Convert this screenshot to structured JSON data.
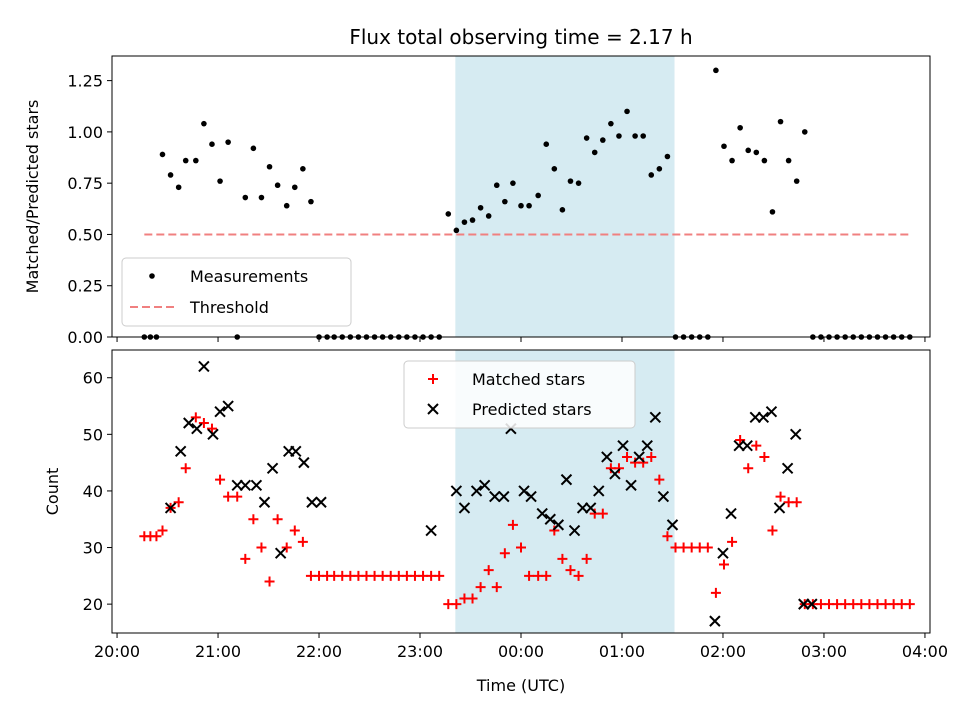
{
  "colors": {
    "band": "#add8e6",
    "measurement": "#000000",
    "threshold": "#f08080",
    "matched": "#ff0000",
    "predicted": "#000000"
  },
  "chart_data": [
    {
      "type": "scatter",
      "title": "Flux total observing time = 2.17 h",
      "xlabel": "",
      "ylabel": "Matched/Predicted stars",
      "xlim": [
        -0.05,
        8.05
      ],
      "ylim": [
        0.0,
        1.37
      ],
      "xticks": [
        0,
        1,
        2,
        3,
        4,
        5,
        6,
        7,
        8
      ],
      "yticks": [
        0.0,
        0.25,
        0.5,
        0.75,
        1.0,
        1.25
      ],
      "ytick_labels": [
        "0.00",
        "0.25",
        "0.50",
        "0.75",
        "1.00",
        "1.25"
      ],
      "grid": false,
      "legend_position": "lower-left",
      "shaded_band": [
        3.35,
        5.52
      ],
      "series": [
        {
          "name": "Measurements",
          "kind": "scatter",
          "x": [
            0.27,
            0.33,
            0.39,
            0.45,
            0.53,
            0.61,
            0.68,
            0.78,
            0.86,
            0.94,
            1.02,
            1.1,
            1.19,
            1.27,
            1.35,
            1.43,
            1.51,
            1.59,
            1.68,
            1.76,
            1.84,
            1.92,
            2.0,
            2.08,
            2.15,
            2.23,
            2.31,
            2.39,
            2.47,
            2.55,
            2.63,
            2.71,
            2.79,
            2.87,
            2.95,
            3.03,
            3.11,
            3.19,
            3.28,
            3.36,
            3.44,
            3.52,
            3.6,
            3.68,
            3.76,
            3.84,
            3.92,
            4.0,
            4.08,
            4.17,
            4.25,
            4.33,
            4.41,
            4.49,
            4.57,
            4.65,
            4.73,
            4.81,
            4.89,
            4.97,
            5.05,
            5.13,
            5.21,
            5.29,
            5.37,
            5.45,
            5.53,
            5.61,
            5.69,
            5.77,
            5.85,
            5.93,
            6.01,
            6.09,
            6.17,
            6.25,
            6.33,
            6.41,
            6.49,
            6.57,
            6.65,
            6.73,
            6.81,
            6.89,
            6.97,
            7.05,
            7.13,
            7.21,
            7.29,
            7.37,
            7.45,
            7.53,
            7.61,
            7.69,
            7.77,
            7.85
          ],
          "y": [
            0,
            0,
            0,
            0.89,
            0.79,
            0.73,
            0.86,
            0.86,
            1.04,
            0.94,
            0.76,
            0.95,
            0,
            0.68,
            0.92,
            0.68,
            0.83,
            0.74,
            0.64,
            0.73,
            0.82,
            0.66,
            0,
            0,
            0,
            0,
            0,
            0,
            0,
            0,
            0,
            0,
            0,
            0,
            0,
            0,
            0,
            0,
            0.6,
            0.52,
            0.56,
            0.57,
            0.63,
            0.59,
            0.74,
            0.66,
            0.75,
            0.64,
            0.64,
            0.69,
            0.94,
            0.82,
            0.62,
            0.76,
            0.75,
            0.97,
            0.9,
            0.96,
            1.04,
            0.98,
            1.1,
            0.98,
            0.98,
            0.79,
            0.82,
            0.88,
            0,
            0,
            0,
            0,
            0,
            1.3,
            0.93,
            0.86,
            1.02,
            0.91,
            0.9,
            0.86,
            0.61,
            1.05,
            0.86,
            0.76,
            1.0,
            0,
            0,
            0,
            0,
            0,
            0,
            0,
            0,
            0,
            0,
            0,
            0,
            0
          ]
        },
        {
          "name": "Threshold",
          "kind": "line",
          "style": "dashed",
          "x": [
            0.27,
            7.85
          ],
          "y": [
            0.5,
            0.5
          ]
        }
      ]
    },
    {
      "type": "scatter",
      "title": "",
      "xlabel": "Time (UTC)",
      "ylabel": "Count",
      "xlim": [
        -0.05,
        8.05
      ],
      "ylim": [
        14.9,
        64.9
      ],
      "xticks": [
        0,
        1,
        2,
        3,
        4,
        5,
        6,
        7,
        8
      ],
      "xtick_labels": [
        "20:00",
        "21:00",
        "22:00",
        "23:00",
        "00:00",
        "01:00",
        "02:00",
        "03:00",
        "04:00"
      ],
      "yticks": [
        20,
        30,
        40,
        50,
        60
      ],
      "ytick_labels": [
        "20",
        "30",
        "40",
        "50",
        "60"
      ],
      "grid": false,
      "legend_position": "top-center",
      "shaded_band": [
        3.35,
        5.52
      ],
      "series": [
        {
          "name": "Matched stars",
          "marker": "plus",
          "x": [
            0.27,
            0.33,
            0.39,
            0.45,
            0.53,
            0.61,
            0.68,
            0.78,
            0.86,
            0.94,
            1.02,
            1.1,
            1.19,
            1.27,
            1.35,
            1.43,
            1.51,
            1.59,
            1.68,
            1.76,
            1.84,
            1.92,
            2.0,
            2.08,
            2.15,
            2.23,
            2.31,
            2.39,
            2.47,
            2.55,
            2.63,
            2.71,
            2.79,
            2.87,
            2.95,
            3.03,
            3.11,
            3.19,
            3.28,
            3.36,
            3.44,
            3.52,
            3.6,
            3.68,
            3.76,
            3.84,
            3.92,
            4.0,
            4.08,
            4.17,
            4.25,
            4.33,
            4.41,
            4.49,
            4.57,
            4.65,
            4.73,
            4.81,
            4.89,
            4.97,
            5.05,
            5.13,
            5.21,
            5.29,
            5.37,
            5.45,
            5.53,
            5.61,
            5.69,
            5.77,
            5.85,
            5.93,
            6.01,
            6.09,
            6.17,
            6.25,
            6.33,
            6.41,
            6.49,
            6.57,
            6.65,
            6.73,
            6.81,
            6.89,
            6.97,
            7.05,
            7.13,
            7.21,
            7.29,
            7.37,
            7.45,
            7.53,
            7.61,
            7.69,
            7.77,
            7.85
          ],
          "y": [
            32,
            32,
            32,
            33,
            37,
            38,
            44,
            53,
            52,
            51,
            42,
            39,
            39,
            28,
            35,
            30,
            24,
            35,
            30,
            33,
            31,
            25,
            25,
            25,
            25,
            25,
            25,
            25,
            25,
            25,
            25,
            25,
            25,
            25,
            25,
            25,
            25,
            25,
            20,
            20,
            21,
            21,
            23,
            26,
            23,
            29,
            34,
            30,
            25,
            25,
            25,
            33,
            28,
            26,
            25,
            28,
            36,
            36,
            44,
            44,
            46,
            45,
            45,
            46,
            42,
            32,
            30,
            30,
            30,
            30,
            30,
            22,
            27,
            31,
            49,
            44,
            48,
            46,
            33,
            39,
            38,
            38,
            20,
            20,
            20,
            20,
            20,
            20,
            20,
            20,
            20,
            20,
            20,
            20,
            20,
            20
          ]
        },
        {
          "name": "Predicted stars",
          "marker": "x",
          "x": [
            0.53,
            0.63,
            0.71,
            0.79,
            0.86,
            0.95,
            1.02,
            1.1,
            1.19,
            1.27,
            1.38,
            1.46,
            1.54,
            1.62,
            1.7,
            1.77,
            1.85,
            1.93,
            2.02,
            3.11,
            3.36,
            3.44,
            3.56,
            3.64,
            3.74,
            3.83,
            3.9,
            4.03,
            4.1,
            4.21,
            4.29,
            4.37,
            4.45,
            4.53,
            4.61,
            4.69,
            4.77,
            4.85,
            4.93,
            5.01,
            5.09,
            5.17,
            5.25,
            5.33,
            5.41,
            5.5,
            5.92,
            6.0,
            6.08,
            6.16,
            6.24,
            6.32,
            6.4,
            6.48,
            6.56,
            6.64,
            6.72,
            6.8,
            6.88
          ],
          "y": [
            37,
            47,
            52,
            51,
            62,
            50,
            54,
            55,
            41,
            41,
            41,
            38,
            44,
            29,
            47,
            47,
            45,
            38,
            38,
            33,
            40,
            37,
            40,
            41,
            39,
            39,
            51,
            40,
            39,
            36,
            35,
            34,
            42,
            33,
            37,
            37,
            40,
            46,
            43,
            48,
            41,
            46,
            48,
            53,
            39,
            34,
            17,
            29,
            36,
            48,
            48,
            53,
            53,
            54,
            37,
            44,
            50,
            20,
            20
          ]
        }
      ]
    }
  ]
}
